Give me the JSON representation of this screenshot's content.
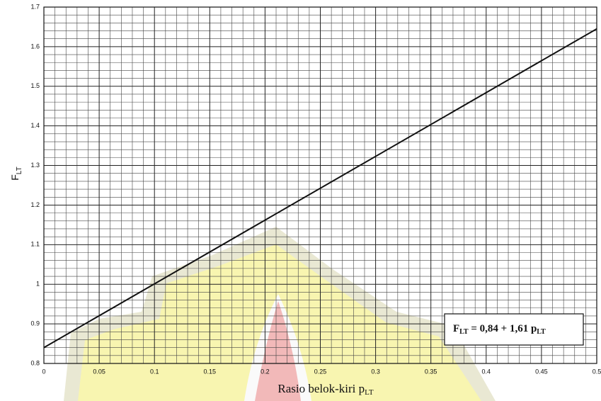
{
  "chart_data": {
    "type": "line",
    "x_label": [
      "Rasio belok-kiri p",
      "LT"
    ],
    "y_label": [
      "F",
      "LT"
    ],
    "annotation": [
      "F",
      "LT",
      " = 0,84 + 1,61 p",
      "LT"
    ],
    "x": [
      0,
      0.5
    ],
    "series": [
      {
        "color": "#111111",
        "values": [
          0.84,
          1.645
        ]
      }
    ],
    "xlim": [
      0,
      0.5
    ],
    "ylim": [
      0.8,
      1.7
    ],
    "xticks": [
      0,
      0.05,
      0.1,
      0.15,
      0.2,
      0.25,
      0.3,
      0.35,
      0.4,
      0.45,
      0.5
    ],
    "yticks": [
      0.8,
      0.9,
      1,
      1.1,
      1.2,
      1.3,
      1.4,
      1.5,
      1.6,
      1.7
    ],
    "grid": true
  }
}
